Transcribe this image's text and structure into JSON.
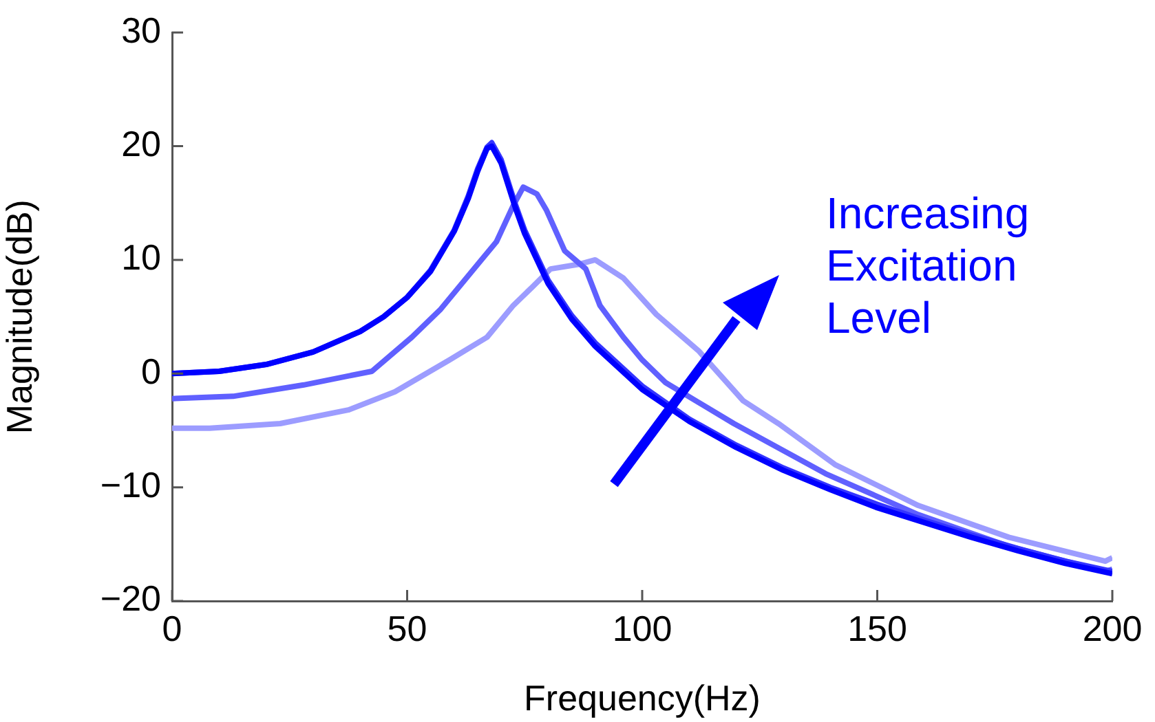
{
  "chart_data": {
    "type": "line",
    "xlabel": "Frequency(Hz)",
    "ylabel": "Magnitude(dB)",
    "xlim": [
      0,
      200
    ],
    "xticks": [
      0,
      50,
      100,
      150,
      200
    ],
    "ylim": [
      -20,
      30
    ],
    "yticks": [
      {
        "value": -20,
        "label": "−20"
      },
      {
        "value": -10,
        "label": "−10"
      },
      0,
      10,
      20,
      30
    ],
    "grid": false,
    "legend": false,
    "marker": "none",
    "line_style": "solid",
    "annotations": [
      "Increasing Excitation Level"
    ],
    "series": [
      {
        "color": "#0000ff",
        "x": [
          0,
          10,
          20,
          30,
          40,
          45,
          50,
          55,
          60,
          63,
          65,
          67,
          68,
          70,
          73,
          75,
          80,
          85,
          90,
          100,
          110,
          120,
          130,
          140,
          150,
          160,
          170,
          180,
          190,
          200
        ],
        "values": [
          0,
          0.2,
          0.8,
          1.9,
          3.7,
          5,
          6.7,
          9,
          12.5,
          15.4,
          17.8,
          19.8,
          20,
          18.5,
          14.6,
          12.3,
          7.9,
          4.8,
          2.4,
          -1.4,
          -4.2,
          -6.5,
          -8.5,
          -10.2,
          -11.8,
          -13.1,
          -14.4,
          -15.6,
          -16.7,
          -17.6
        ]
      },
      {
        "color": "#3535ff",
        "x": [
          0,
          10,
          20,
          30,
          40,
          45,
          50,
          55,
          60,
          63,
          65,
          67,
          68,
          70,
          73,
          75,
          80,
          85,
          90,
          100,
          110,
          120,
          130,
          140,
          150,
          160,
          170,
          180,
          190,
          200
        ],
        "values": [
          0,
          0.2,
          0.8,
          1.9,
          3.7,
          5,
          6.7,
          9.1,
          12.6,
          15.6,
          18,
          19.9,
          20.3,
          18.8,
          14.9,
          12.6,
          8.2,
          5.1,
          2.7,
          -1.1,
          -4,
          -6.3,
          -8.3,
          -10,
          -11.5,
          -12.9,
          -14.2,
          -15.4,
          -16.5,
          -17.4
        ]
      },
      {
        "color": "#6060ff",
        "x": [
          0,
          13,
          28,
          42.5,
          51,
          57,
          65,
          69,
          72.6,
          74.7,
          77.6,
          79.6,
          83.5,
          88,
          91,
          96,
          100,
          105,
          119.5,
          139,
          158.7,
          178,
          198.5,
          200
        ],
        "values": [
          -2.2,
          -2,
          -1,
          0.2,
          3.2,
          5.6,
          9.6,
          11.6,
          14.8,
          16.4,
          15.8,
          14.4,
          10.8,
          9.2,
          6,
          3.2,
          1.2,
          -0.8,
          -4.4,
          -8.8,
          -12.4,
          -15.2,
          -17.4,
          -17.2
        ]
      },
      {
        "color": "#9c9cff",
        "x": [
          0,
          8,
          23,
          37.5,
          47.4,
          59,
          67,
          72.6,
          76.6,
          80.5,
          86.4,
          90,
          96,
          103,
          112,
          121.5,
          129,
          141,
          158.7,
          178,
          198.5,
          200
        ],
        "values": [
          -4.8,
          -4.8,
          -4.4,
          -3.2,
          -1.6,
          1.2,
          3.2,
          6,
          7.6,
          9.2,
          9.6,
          10,
          8.4,
          5.2,
          2,
          -2.4,
          -4.4,
          -8,
          -11.6,
          -14.4,
          -16.5,
          -16.2
        ]
      }
    ]
  }
}
